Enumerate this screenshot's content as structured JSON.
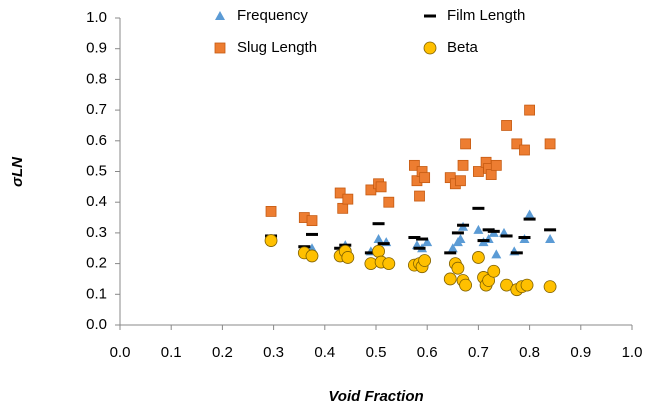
{
  "chart_data": {
    "type": "scatter",
    "xlabel": "Void Fraction",
    "ylabel": "σLN",
    "xlim": [
      0,
      1
    ],
    "ylim": [
      0,
      1
    ],
    "xticks": [
      {
        "value": 0,
        "label": "0.0"
      },
      0.1,
      0.2,
      0.3,
      0.4,
      0.5,
      0.6,
      0.7,
      0.8,
      0.9,
      {
        "value": 1,
        "label": "1.0"
      }
    ],
    "yticks": [
      {
        "value": 0,
        "label": "0.0"
      },
      0.1,
      0.2,
      0.3,
      0.4,
      0.5,
      0.6,
      0.7,
      0.8,
      0.9,
      {
        "value": 1,
        "label": "1.0"
      }
    ],
    "grid": false,
    "legend": "top",
    "series": [
      {
        "name": "Frequency",
        "color": "#5b9bd5",
        "marker": "triangle",
        "x": [
          0.375,
          0.44,
          0.49,
          0.505,
          0.52,
          0.58,
          0.59,
          0.6,
          0.65,
          0.66,
          0.665,
          0.67,
          0.7,
          0.71,
          0.72,
          0.73,
          0.735,
          0.75,
          0.77,
          0.79,
          0.8,
          0.84
        ],
        "values": [
          0.25,
          0.26,
          0.24,
          0.28,
          0.27,
          0.26,
          0.25,
          0.27,
          0.25,
          0.27,
          0.28,
          0.32,
          0.31,
          0.27,
          0.28,
          0.3,
          0.23,
          0.3,
          0.24,
          0.28,
          0.36,
          0.28
        ]
      },
      {
        "name": "Film Length",
        "color": "#000000",
        "marker": "dash",
        "x": [
          0.295,
          0.36,
          0.375,
          0.43,
          0.44,
          0.49,
          0.505,
          0.515,
          0.575,
          0.585,
          0.59,
          0.645,
          0.66,
          0.67,
          0.7,
          0.71,
          0.72,
          0.73,
          0.755,
          0.775,
          0.79,
          0.8,
          0.84
        ],
        "values": [
          0.29,
          0.255,
          0.295,
          0.25,
          0.26,
          0.235,
          0.33,
          0.265,
          0.285,
          0.25,
          0.28,
          0.235,
          0.3,
          0.325,
          0.38,
          0.275,
          0.31,
          0.305,
          0.29,
          0.235,
          0.285,
          0.345,
          0.31
        ]
      },
      {
        "name": "Slug Length",
        "color": "#ed7d31",
        "marker": "square",
        "x": [
          0.295,
          0.36,
          0.375,
          0.43,
          0.435,
          0.445,
          0.49,
          0.505,
          0.51,
          0.525,
          0.575,
          0.58,
          0.585,
          0.59,
          0.595,
          0.645,
          0.655,
          0.665,
          0.67,
          0.675,
          0.7,
          0.715,
          0.72,
          0.725,
          0.735,
          0.755,
          0.775,
          0.79,
          0.8,
          0.84
        ],
        "values": [
          0.37,
          0.35,
          0.34,
          0.43,
          0.38,
          0.41,
          0.44,
          0.46,
          0.45,
          0.4,
          0.52,
          0.47,
          0.42,
          0.5,
          0.48,
          0.48,
          0.46,
          0.47,
          0.52,
          0.59,
          0.5,
          0.53,
          0.51,
          0.49,
          0.52,
          0.65,
          0.59,
          0.57,
          0.7,
          0.59
        ]
      },
      {
        "name": "Beta",
        "color": "#ffc000",
        "marker": "circle",
        "x": [
          0.295,
          0.36,
          0.375,
          0.43,
          0.44,
          0.445,
          0.49,
          0.505,
          0.51,
          0.525,
          0.575,
          0.585,
          0.59,
          0.595,
          0.645,
          0.655,
          0.66,
          0.67,
          0.675,
          0.7,
          0.71,
          0.715,
          0.72,
          0.73,
          0.755,
          0.775,
          0.785,
          0.795,
          0.84
        ],
        "values": [
          0.275,
          0.235,
          0.225,
          0.225,
          0.24,
          0.22,
          0.2,
          0.24,
          0.205,
          0.2,
          0.195,
          0.2,
          0.19,
          0.21,
          0.15,
          0.2,
          0.185,
          0.145,
          0.13,
          0.22,
          0.155,
          0.13,
          0.145,
          0.175,
          0.13,
          0.115,
          0.125,
          0.13,
          0.125
        ]
      }
    ]
  }
}
